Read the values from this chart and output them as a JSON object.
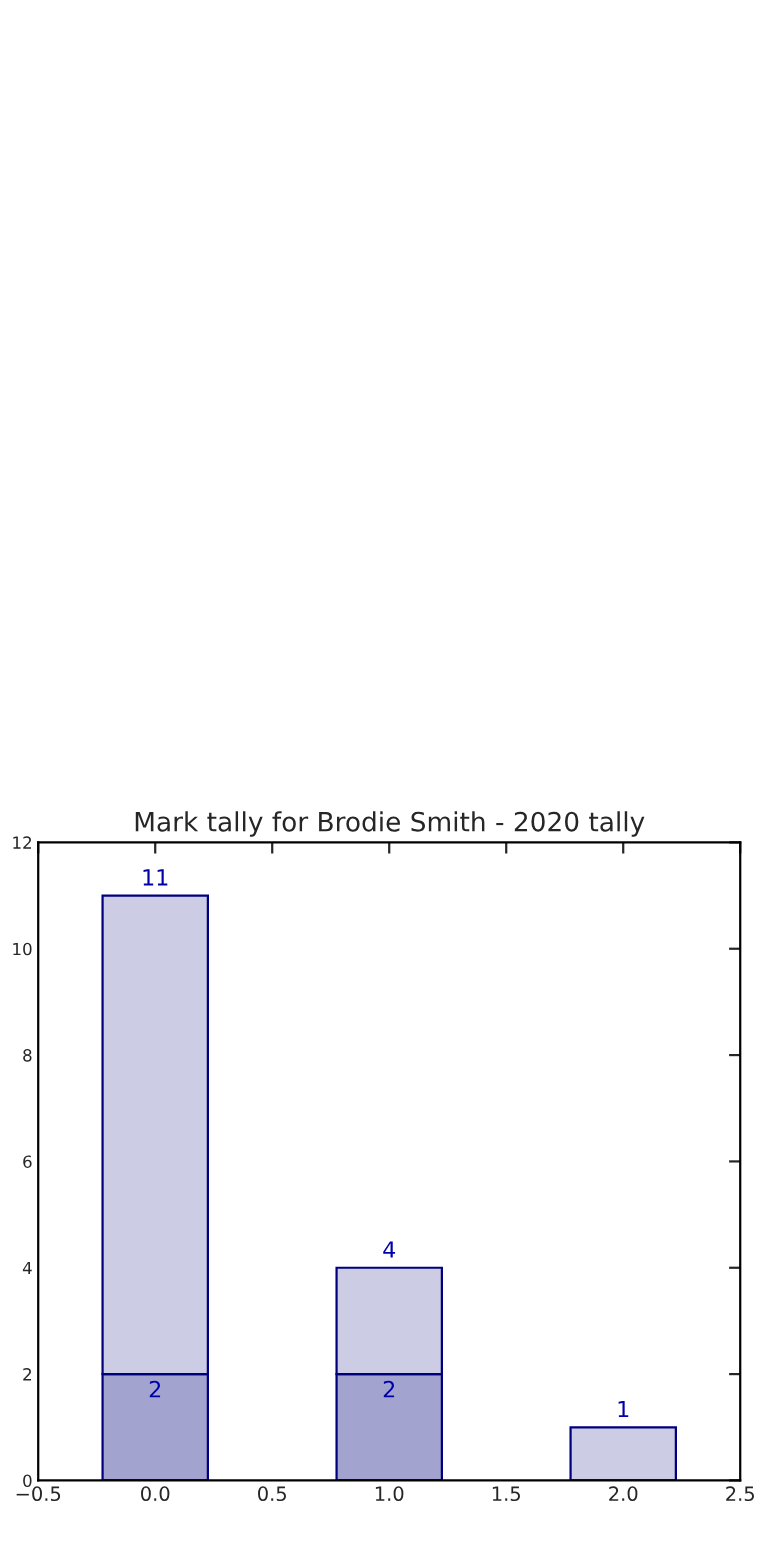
{
  "chart_data": {
    "type": "bar",
    "stacked": true,
    "title": "Mark tally for Brodie Smith - 2020 tally",
    "x": [
      0,
      1,
      2
    ],
    "series": [
      {
        "color": "#a3a3d0",
        "values": [
          2,
          2,
          null
        ],
        "value_labels": [
          "2",
          "2",
          null
        ]
      },
      {
        "color": "#ccccE4",
        "values": [
          9,
          2,
          1
        ]
      }
    ],
    "totals": [
      "11",
      "4",
      "1"
    ],
    "xlim": [
      -0.5,
      2.5
    ],
    "xticks": [
      {
        "value": -0.5,
        "label": "−0.5"
      },
      {
        "value": 0,
        "label": "0.0"
      },
      {
        "value": 0.5,
        "label": "0.5"
      },
      {
        "value": 1,
        "label": "1.0"
      },
      {
        "value": 1.5,
        "label": "1.5"
      },
      {
        "value": 2,
        "label": "2.0"
      },
      {
        "value": 2.5,
        "label": "2.5"
      }
    ],
    "ylim": [
      0,
      12
    ],
    "yticks": [
      0,
      2,
      4,
      6,
      8,
      10,
      12
    ],
    "grid": false
  }
}
